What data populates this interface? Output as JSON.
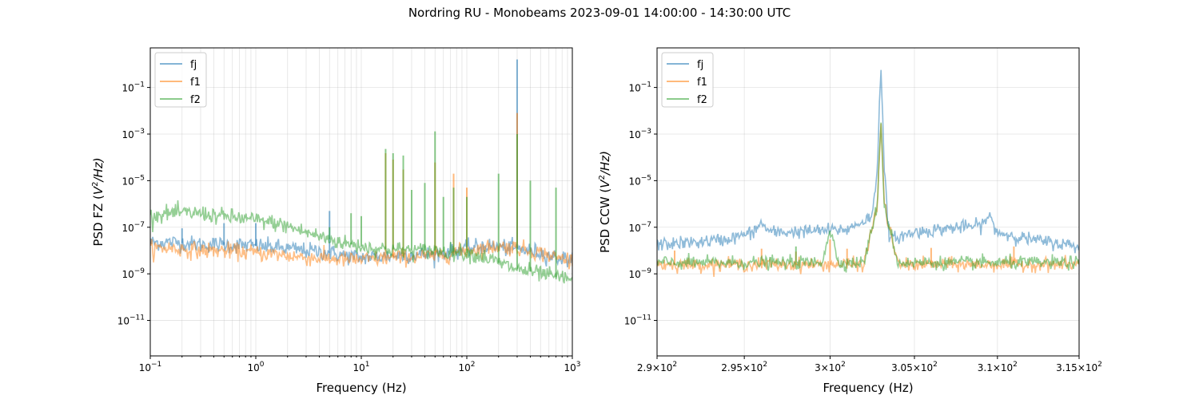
{
  "figure": {
    "title": "Nordring RU - Monobeams 2023-09-01  14:00:00 - 14:30:00 UTC"
  },
  "colors": {
    "fj": "#1f77b4",
    "f1": "#ff7f0e",
    "f2": "#2ca02c"
  },
  "chart_data": [
    {
      "type": "line",
      "xlabel": "Frequency (Hz)",
      "ylabel_prefix": "PSD FZ (",
      "ylabel_unit_base": "V",
      "ylabel_unit_exp": "2",
      "ylabel_unit_tail": "/Hz)",
      "xscale": "log",
      "yscale": "log",
      "xlim": [
        0.1,
        1000
      ],
      "ylim": [
        3e-13,
        5
      ],
      "grid": true,
      "legend": "top-left",
      "x_ticks": [
        {
          "base": "10",
          "exp": "−1"
        },
        {
          "base": "10",
          "exp": "0"
        },
        {
          "base": "10",
          "exp": "1"
        },
        {
          "base": "10",
          "exp": "2"
        },
        {
          "base": "10",
          "exp": "3"
        }
      ],
      "y_ticks": [
        {
          "base": "10",
          "exp": "−11"
        },
        {
          "base": "10",
          "exp": "−9"
        },
        {
          "base": "10",
          "exp": "−7"
        },
        {
          "base": "10",
          "exp": "−5"
        },
        {
          "base": "10",
          "exp": "−3"
        },
        {
          "base": "10",
          "exp": "−1"
        }
      ],
      "series": [
        {
          "name": "fj",
          "x": [
            0.1,
            0.15,
            0.2,
            0.3,
            0.45,
            0.7,
            1,
            1.5,
            2,
            3,
            5,
            7,
            10,
            15,
            20,
            30,
            50,
            70,
            100,
            150,
            200,
            300,
            500,
            700,
            1000
          ],
          "y": [
            2.2e-08,
            2.3e-08,
            2.1e-08,
            1.8e-08,
            1.8e-08,
            1.7e-08,
            1.6e-08,
            1.4e-08,
            1.2e-08,
            1e-08,
            8e-09,
            6e-09,
            5e-09,
            5.5e-09,
            6e-09,
            6.5e-09,
            7e-09,
            9e-09,
            1.2e-08,
            1.6e-08,
            1.4e-08,
            1.2e-08,
            8e-09,
            5e-09,
            4e-09
          ],
          "peaks": [
            [
              0.2,
              9e-08
            ],
            [
              0.5,
              1.5e-07
            ],
            [
              1.0,
              1.5e-07
            ],
            [
              5,
              5e-07
            ],
            [
              300,
              1.6
            ]
          ]
        },
        {
          "name": "f1",
          "x": [
            0.1,
            0.15,
            0.2,
            0.3,
            0.45,
            0.7,
            1,
            1.5,
            2,
            3,
            5,
            7,
            10,
            15,
            20,
            30,
            50,
            70,
            100,
            150,
            200,
            300,
            500,
            700,
            1000
          ],
          "y": [
            1.2e-08,
            1.3e-08,
            1.1e-08,
            1e-08,
            1e-08,
            9e-09,
            8e-09,
            7e-09,
            6e-09,
            5e-09,
            4.5e-09,
            4e-09,
            4e-09,
            4.5e-09,
            5e-09,
            5.5e-09,
            6e-09,
            7.5e-09,
            1e-08,
            1.3e-08,
            1.5e-08,
            1.3e-08,
            8e-09,
            5e-09,
            4e-09
          ],
          "peaks": [
            [
              17,
              0.00015
            ],
            [
              20,
              8e-05
            ],
            [
              25,
              3e-05
            ],
            [
              50,
              6e-05
            ],
            [
              75,
              2e-05
            ],
            [
              100,
              5e-06
            ],
            [
              300,
              0.008
            ]
          ]
        },
        {
          "name": "f2",
          "x": [
            0.1,
            0.15,
            0.2,
            0.3,
            0.45,
            0.7,
            1,
            1.5,
            2,
            3,
            5,
            7,
            10,
            15,
            20,
            30,
            50,
            70,
            100,
            150,
            200,
            300,
            500,
            700,
            1000
          ],
          "y": [
            3e-07,
            4e-07,
            4e-07,
            4e-07,
            3e-07,
            2.5e-07,
            2e-07,
            1.5e-07,
            1.1e-07,
            6e-08,
            3e-08,
            2e-08,
            1.5e-08,
            1.2e-08,
            1.1e-08,
            1e-08,
            1e-08,
            9e-09,
            8e-09,
            5e-09,
            3e-09,
            1.6e-09,
            1e-09,
            7e-10,
            6e-10
          ],
          "peaks": [
            [
              5,
              1e-07
            ],
            [
              8,
              4e-07
            ],
            [
              10,
              3e-07
            ],
            [
              17,
              0.00023
            ],
            [
              20,
              0.00015
            ],
            [
              25,
              0.00012
            ],
            [
              30,
              4e-06
            ],
            [
              40,
              8e-06
            ],
            [
              50,
              0.0013
            ],
            [
              60,
              2e-06
            ],
            [
              75,
              5e-06
            ],
            [
              100,
              2e-06
            ],
            [
              200,
              2e-05
            ],
            [
              300,
              0.001
            ],
            [
              400,
              1e-05
            ],
            [
              700,
              5e-06
            ]
          ]
        }
      ]
    },
    {
      "type": "line",
      "xlabel": "Frequency (Hz)",
      "ylabel_prefix": "PSD CCW (",
      "ylabel_unit_base": "V",
      "ylabel_unit_exp": "2",
      "ylabel_unit_tail": "/Hz)",
      "xscale": "log",
      "yscale": "log",
      "xlim": [
        290,
        315
      ],
      "ylim": [
        3e-13,
        5
      ],
      "grid": true,
      "legend": "top-left",
      "x_ticks": [
        {
          "value": 290,
          "mantissa": "2.9×",
          "base": "10",
          "exp": "2"
        },
        {
          "value": 295,
          "mantissa": "2.95×",
          "base": "10",
          "exp": "2"
        },
        {
          "value": 300,
          "mantissa": "3×",
          "base": "10",
          "exp": "2"
        },
        {
          "value": 305,
          "mantissa": "3.05×",
          "base": "10",
          "exp": "2"
        },
        {
          "value": 310,
          "mantissa": "3.1×",
          "base": "10",
          "exp": "2"
        },
        {
          "value": 315,
          "mantissa": "3.15×",
          "base": "10",
          "exp": "2"
        }
      ],
      "y_ticks": [
        {
          "base": "10",
          "exp": "−11"
        },
        {
          "base": "10",
          "exp": "−9"
        },
        {
          "base": "10",
          "exp": "−7"
        },
        {
          "base": "10",
          "exp": "−5"
        },
        {
          "base": "10",
          "exp": "−3"
        },
        {
          "base": "10",
          "exp": "−1"
        }
      ],
      "series": [
        {
          "name": "fj",
          "x": [
            290,
            292,
            294,
            295.5,
            296,
            296.5,
            297,
            299,
            301,
            302.5,
            302.8,
            303,
            303.2,
            303.5,
            305,
            307,
            309,
            309.5,
            310,
            312,
            315
          ],
          "y": [
            1.8e-08,
            2.2e-08,
            3e-08,
            6e-08,
            1.5e-07,
            6e-08,
            6e-08,
            7e-08,
            8e-08,
            3e-07,
            5e-05,
            1.6,
            3e-05,
            3e-08,
            6e-08,
            9e-08,
            1.2e-07,
            3e-07,
            6e-08,
            3e-08,
            1.5e-08
          ]
        },
        {
          "name": "f1",
          "x": [
            290,
            291,
            292,
            293,
            295,
            296,
            298,
            299,
            300,
            301,
            302,
            302.8,
            303,
            303.2,
            304,
            305,
            306,
            308,
            311,
            313,
            315
          ],
          "y": [
            2.5e-09,
            2.5e-09,
            2.5e-09,
            2.5e-09,
            2.5e-09,
            2.5e-09,
            2.5e-09,
            2.5e-09,
            2.5e-09,
            2.5e-09,
            2.5e-09,
            1e-06,
            0.005,
            1e-06,
            2.5e-09,
            2.5e-09,
            2.5e-09,
            2.5e-09,
            2.5e-09,
            2.5e-09,
            2.5e-09
          ],
          "peaks": [
            [
              291,
              1e-08
            ],
            [
              296,
              1.2e-08
            ],
            [
              298,
              9e-09
            ],
            [
              300,
              3e-08
            ],
            [
              301,
              1.2e-08
            ],
            [
              306,
              1.3e-08
            ],
            [
              311,
              1.5e-08
            ]
          ]
        },
        {
          "name": "f2",
          "x": [
            290,
            292,
            294,
            296,
            298,
            299.5,
            300,
            300.5,
            302,
            302.8,
            303,
            303.2,
            304,
            306,
            308,
            310,
            312,
            315
          ],
          "y": [
            3e-09,
            3e-09,
            3e-09,
            3e-09,
            3e-09,
            3e-09,
            8e-08,
            3e-09,
            3e-09,
            1e-06,
            0.003,
            1e-06,
            3e-09,
            3e-09,
            3e-09,
            3e-09,
            3e-09,
            3e-09
          ],
          "peaks": [
            [
              298,
              1.5e-08
            ],
            [
              300,
              8e-08
            ]
          ]
        }
      ]
    }
  ]
}
